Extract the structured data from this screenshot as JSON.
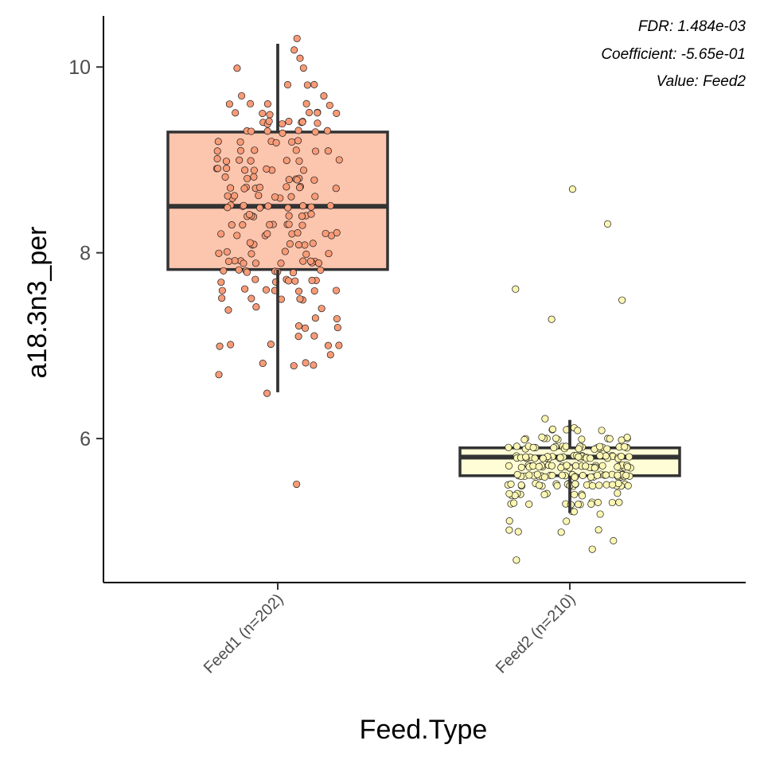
{
  "chart_data": {
    "type": "box",
    "xlabel": "Feed.Type",
    "ylabel": "a18.3n3_per",
    "ylim": [
      4.45,
      10.55
    ],
    "yticks": [
      6,
      8,
      10
    ],
    "grid": false,
    "annotations": [
      "FDR: 1.484e-03",
      "Coefficient: -5.65e-01",
      "Value: Feed2"
    ],
    "categories": [
      "Feed1 (n=202)",
      "Feed2 (n=210)"
    ],
    "colors": {
      "feed1_fill": "#FCC5AE",
      "feed1_point": "#F89B77",
      "feed2_fill": "#FFFDD6",
      "feed2_point": "#FBF6B2",
      "outline": "#333333"
    },
    "boxes": [
      {
        "category": "Feed1 (n=202)",
        "whisker_low": 6.5,
        "q1": 7.82,
        "median": 8.5,
        "q3": 9.3,
        "whisker_high": 10.25
      },
      {
        "category": "Feed2 (n=210)",
        "whisker_low": 5.2,
        "q1": 5.6,
        "median": 5.8,
        "q3": 5.9,
        "whisker_high": 6.2
      }
    ],
    "points": [
      [
        10.3,
        10.2,
        10.1,
        10.0,
        10.0,
        9.8,
        9.8,
        9.8,
        9.7,
        9.7,
        9.6,
        9.6,
        9.6,
        9.6,
        9.6,
        9.5,
        9.5,
        9.5,
        9.5,
        9.5,
        9.5,
        9.5,
        9.4,
        9.4,
        9.4,
        9.4,
        9.4,
        9.4,
        9.4,
        9.4,
        9.3,
        9.3,
        9.3,
        9.3,
        9.3,
        9.3,
        9.2,
        9.2,
        9.2,
        9.2,
        9.2,
        9.1,
        9.1,
        9.1,
        9.1,
        9.1,
        9.0,
        9.0,
        9.0,
        9.0,
        9.0,
        9.0,
        8.9,
        8.9,
        8.9,
        8.9,
        8.9,
        8.9,
        8.9,
        8.8,
        8.8,
        8.8,
        8.8,
        8.8,
        8.8,
        8.8,
        8.7,
        8.7,
        8.7,
        8.7,
        8.7,
        8.7,
        8.7,
        8.7,
        8.6,
        8.6,
        8.6,
        8.6,
        8.6,
        8.6,
        8.6,
        8.5,
        8.5,
        8.5,
        8.5,
        8.5,
        8.5,
        8.5,
        8.5,
        8.5,
        8.4,
        8.4,
        8.4,
        8.4,
        8.4,
        8.4,
        8.4,
        8.3,
        8.3,
        8.3,
        8.3,
        8.3,
        8.3,
        8.2,
        8.2,
        8.2,
        8.2,
        8.2,
        8.2,
        8.2,
        8.2,
        8.1,
        8.1,
        8.1,
        8.1,
        8.1,
        8.1,
        8.0,
        8.0,
        8.0,
        8.0,
        8.0,
        7.9,
        7.9,
        7.9,
        7.9,
        7.9,
        7.9,
        7.9,
        7.9,
        7.9,
        7.9,
        7.8,
        7.8,
        7.8,
        7.8,
        7.8,
        7.8,
        7.8,
        7.7,
        7.7,
        7.7,
        7.7,
        7.7,
        7.7,
        7.7,
        7.6,
        7.6,
        7.6,
        7.6,
        7.6,
        7.6,
        7.5,
        7.5,
        7.5,
        7.5,
        7.4,
        7.4,
        7.4,
        7.3,
        7.3,
        7.2,
        7.2,
        7.2,
        7.1,
        7.1,
        7.0,
        7.0,
        7.0,
        7.0,
        7.0,
        6.9,
        6.8,
        6.8,
        6.8,
        6.8,
        6.7,
        6.5,
        5.5,
        8.6,
        8.4,
        8.2,
        8.1,
        8.0,
        7.9,
        7.8,
        7.7,
        7.6,
        7.5,
        9.0,
        9.2,
        9.4,
        8.3,
        8.7,
        8.9,
        9.1,
        8.5,
        8.8,
        9.3
      ],
      [
        8.7,
        8.3,
        7.6,
        7.5,
        7.3,
        6.2,
        6.1,
        6.1,
        6.1,
        6.1,
        6.1,
        6.1,
        6.1,
        6.0,
        6.0,
        6.0,
        6.0,
        6.0,
        6.0,
        6.0,
        6.0,
        6.0,
        6.0,
        6.0,
        6.0,
        6.0,
        5.9,
        5.9,
        5.9,
        5.9,
        5.9,
        5.9,
        5.9,
        5.9,
        5.9,
        5.9,
        5.9,
        5.9,
        5.9,
        5.9,
        5.9,
        5.9,
        5.9,
        5.9,
        5.9,
        5.9,
        5.9,
        5.9,
        5.9,
        5.8,
        5.8,
        5.8,
        5.8,
        5.8,
        5.8,
        5.8,
        5.8,
        5.8,
        5.8,
        5.8,
        5.8,
        5.8,
        5.8,
        5.8,
        5.8,
        5.8,
        5.8,
        5.8,
        5.8,
        5.8,
        5.8,
        5.8,
        5.8,
        5.8,
        5.8,
        5.8,
        5.8,
        5.8,
        5.8,
        5.7,
        5.7,
        5.7,
        5.7,
        5.7,
        5.7,
        5.7,
        5.7,
        5.7,
        5.7,
        5.7,
        5.7,
        5.7,
        5.7,
        5.7,
        5.7,
        5.7,
        5.7,
        5.7,
        5.7,
        5.7,
        5.7,
        5.7,
        5.7,
        5.7,
        5.7,
        5.7,
        5.7,
        5.7,
        5.7,
        5.6,
        5.6,
        5.6,
        5.6,
        5.6,
        5.6,
        5.6,
        5.6,
        5.6,
        5.6,
        5.6,
        5.6,
        5.6,
        5.6,
        5.6,
        5.6,
        5.6,
        5.6,
        5.6,
        5.6,
        5.6,
        5.6,
        5.6,
        5.6,
        5.6,
        5.6,
        5.6,
        5.6,
        5.6,
        5.6,
        5.5,
        5.5,
        5.5,
        5.5,
        5.5,
        5.5,
        5.5,
        5.5,
        5.5,
        5.5,
        5.5,
        5.5,
        5.5,
        5.5,
        5.5,
        5.5,
        5.5,
        5.5,
        5.5,
        5.5,
        5.5,
        5.5,
        5.5,
        5.5,
        5.5,
        5.4,
        5.4,
        5.4,
        5.4,
        5.4,
        5.4,
        5.4,
        5.4,
        5.4,
        5.4,
        5.4,
        5.3,
        5.3,
        5.3,
        5.3,
        5.3,
        5.3,
        5.3,
        5.3,
        5.3,
        5.3,
        5.3,
        5.3,
        5.2,
        5.2,
        5.2,
        5.1,
        5.1,
        5.0,
        5.0,
        5.0,
        5.0,
        4.9,
        4.8,
        4.7,
        5.6,
        5.7,
        5.8,
        5.9,
        5.6,
        5.7,
        5.8,
        5.5,
        5.6,
        5.7,
        5.8,
        5.9,
        5.6,
        5.7,
        5.8
      ]
    ]
  }
}
